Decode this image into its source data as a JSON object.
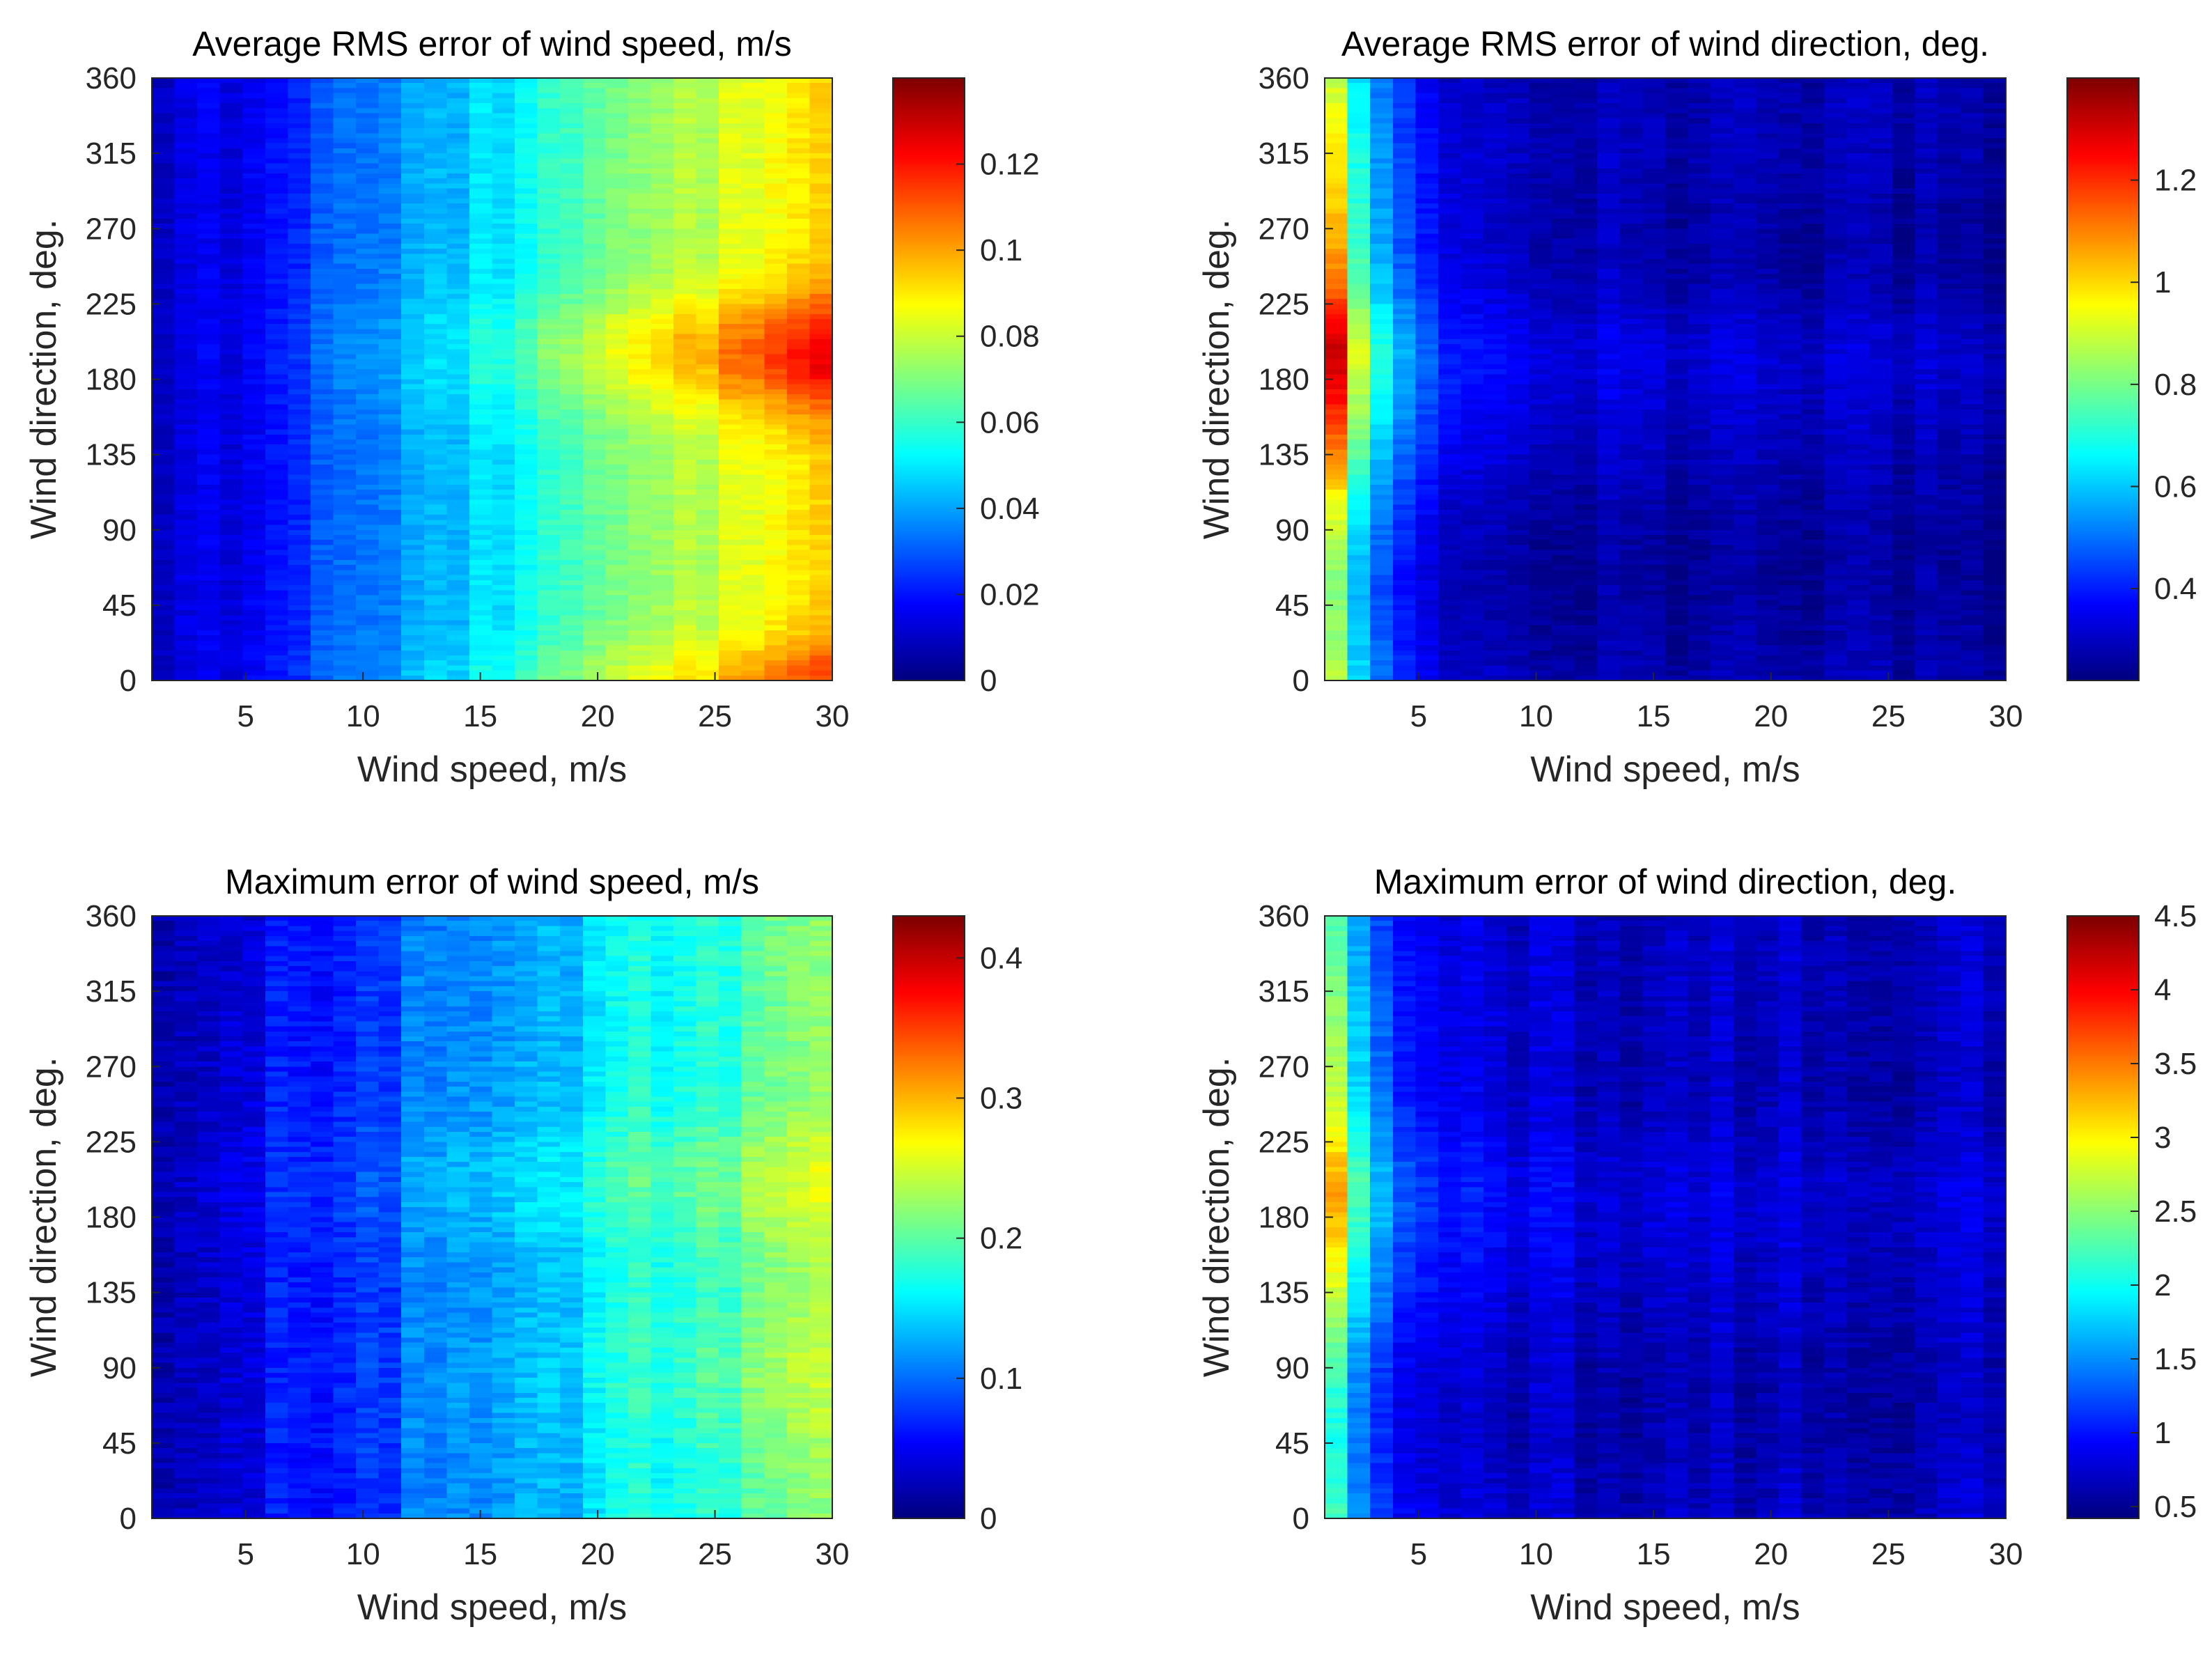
{
  "chart_data": [
    {
      "type": "heatmap",
      "id": "avg-rms-speed",
      "title": "Average RMS error of wind speed, m/s",
      "xlabel": "Wind speed, m/s",
      "ylabel": "Wind direction, deg.",
      "xlim": [
        1,
        30
      ],
      "ylim": [
        0,
        360
      ],
      "xticks": [
        5,
        10,
        15,
        20,
        25,
        30
      ],
      "yticks": [
        0,
        45,
        90,
        135,
        180,
        225,
        270,
        315,
        360
      ],
      "colorbar": {
        "colormap": "jet",
        "clim": [
          0,
          0.14
        ],
        "ticks": [
          0,
          0.02,
          0.04,
          0.06,
          0.08,
          0.1,
          0.12
        ],
        "tick_labels": [
          "0",
          "0.02",
          "0.04",
          "0.06",
          "0.08",
          "0.1",
          "0.12"
        ]
      },
      "pattern": "increases_with_speed_peak_near_180_and_0",
      "z_range_observed": [
        0.005,
        0.125
      ]
    },
    {
      "type": "heatmap",
      "id": "avg-rms-direction",
      "title": "Average RMS error of wind direction, deg.",
      "xlabel": "Wind speed, m/s",
      "ylabel": "Wind direction, deg.",
      "xlim": [
        1,
        30
      ],
      "ylim": [
        0,
        360
      ],
      "xticks": [
        5,
        10,
        15,
        20,
        25,
        30
      ],
      "yticks": [
        0,
        45,
        90,
        135,
        180,
        225,
        270,
        315,
        360
      ],
      "colorbar": {
        "colormap": "jet",
        "clim": [
          0.22,
          1.4
        ],
        "ticks": [
          0.4,
          0.6,
          0.8,
          1,
          1.2
        ],
        "tick_labels": [
          "0.4",
          "0.6",
          "0.8",
          "1",
          "1.2"
        ]
      },
      "pattern": "high_at_low_speed_decreasing",
      "z_range_observed": [
        0.25,
        1.3
      ]
    },
    {
      "type": "heatmap",
      "id": "max-speed",
      "title": "Maximum error of wind speed, m/s",
      "xlabel": "Wind speed, m/s",
      "ylabel": "Wind direction, deg.",
      "xlim": [
        1,
        30
      ],
      "ylim": [
        0,
        360
      ],
      "xticks": [
        5,
        10,
        15,
        20,
        25,
        30
      ],
      "yticks": [
        0,
        45,
        90,
        135,
        180,
        225,
        270,
        315,
        360
      ],
      "colorbar": {
        "colormap": "jet",
        "clim": [
          0,
          0.43
        ],
        "ticks": [
          0,
          0.1,
          0.2,
          0.3,
          0.4
        ],
        "tick_labels": [
          "0",
          "0.1",
          "0.2",
          "0.3",
          "0.4"
        ]
      },
      "pattern": "increases_with_speed_streaky",
      "z_range_observed": [
        0.01,
        0.34
      ]
    },
    {
      "type": "heatmap",
      "id": "max-direction",
      "title": "Maximum error of wind direction, deg.",
      "xlabel": "Wind speed, m/s",
      "ylabel": "Wind direction, deg.",
      "xlim": [
        1,
        30
      ],
      "ylim": [
        0,
        360
      ],
      "xticks": [
        5,
        10,
        15,
        20,
        25,
        30
      ],
      "yticks": [
        0,
        45,
        90,
        135,
        180,
        225,
        270,
        315,
        360
      ],
      "colorbar": {
        "colormap": "jet",
        "clim": [
          0.42,
          4.5
        ],
        "ticks": [
          0.5,
          1,
          1.5,
          2,
          2.5,
          3,
          3.5,
          4,
          4.5
        ],
        "tick_labels": [
          "0.5",
          "1",
          "1.5",
          "2",
          "2.5",
          "3",
          "3.5",
          "4",
          "4.5"
        ]
      },
      "pattern": "high_at_low_speed_decreasing",
      "z_range_observed": [
        0.6,
        3.9
      ]
    }
  ]
}
